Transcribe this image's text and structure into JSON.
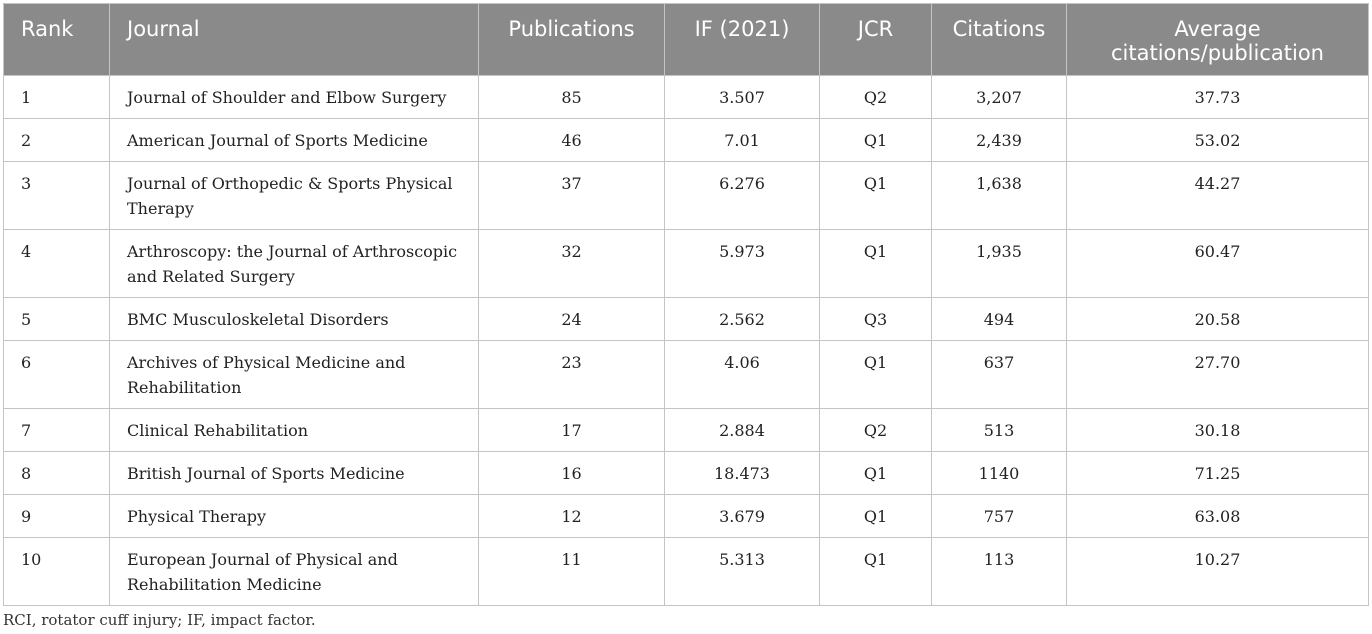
{
  "table": {
    "headers": [
      "Rank",
      "Journal",
      "Publications",
      "IF (2021)",
      "JCR",
      "Citations",
      "Average citations/publication"
    ],
    "rows": [
      {
        "rank": "1",
        "journal": "Journal of Shoulder and Elbow Surgery",
        "publications": "85",
        "if": "3.507",
        "jcr": "Q2",
        "citations": "3,207",
        "avg": "37.73"
      },
      {
        "rank": "2",
        "journal": "American Journal of Sports Medicine",
        "publications": "46",
        "if": "7.01",
        "jcr": "Q1",
        "citations": "2,439",
        "avg": "53.02"
      },
      {
        "rank": "3",
        "journal": "Journal of Orthopedic & Sports Physical Therapy",
        "publications": "37",
        "if": "6.276",
        "jcr": "Q1",
        "citations": "1,638",
        "avg": "44.27"
      },
      {
        "rank": "4",
        "journal": "Arthroscopy: the Journal of Arthroscopic and Related Surgery",
        "publications": "32",
        "if": "5.973",
        "jcr": "Q1",
        "citations": "1,935",
        "avg": "60.47"
      },
      {
        "rank": "5",
        "journal": "BMC Musculoskeletal Disorders",
        "publications": "24",
        "if": "2.562",
        "jcr": "Q3",
        "citations": "494",
        "avg": "20.58"
      },
      {
        "rank": "6",
        "journal": "Archives of Physical Medicine and Rehabilitation",
        "publications": "23",
        "if": "4.06",
        "jcr": "Q1",
        "citations": "637",
        "avg": "27.70"
      },
      {
        "rank": "7",
        "journal": "Clinical Rehabilitation",
        "publications": "17",
        "if": "2.884",
        "jcr": "Q2",
        "citations": "513",
        "avg": "30.18"
      },
      {
        "rank": "8",
        "journal": "British Journal of Sports Medicine",
        "publications": "16",
        "if": "18.473",
        "jcr": "Q1",
        "citations": "1140",
        "avg": "71.25"
      },
      {
        "rank": "9",
        "journal": "Physical Therapy",
        "publications": "12",
        "if": "3.679",
        "jcr": "Q1",
        "citations": "757",
        "avg": "63.08"
      },
      {
        "rank": "10",
        "journal": "European Journal of Physical and Rehabilitation Medicine",
        "publications": "11",
        "if": "5.313",
        "jcr": "Q1",
        "citations": "113",
        "avg": "10.27"
      }
    ]
  },
  "footnote": "RCI, rotator cuff injury; IF, impact factor.",
  "colors": {
    "header_bg": "#8a8a8a",
    "header_text": "#ffffff",
    "border": "#c4c4c4"
  }
}
